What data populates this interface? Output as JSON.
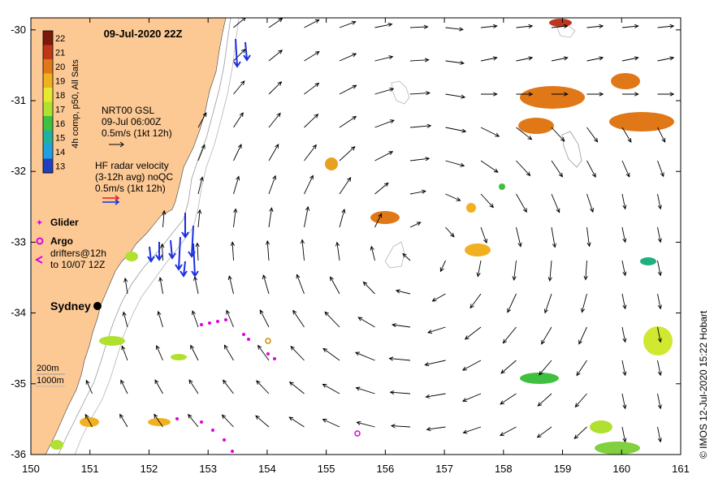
{
  "map": {
    "title": "09-Jul-2020 22Z",
    "credit": "© IMOS 12-Jul-2020 15:22 Hobart",
    "x_ticks": [
      "150",
      "151",
      "152",
      "153",
      "154",
      "155",
      "156",
      "157",
      "158",
      "159",
      "160",
      "161"
    ],
    "y_ticks": [
      "-30",
      "-31",
      "-32",
      "-33",
      "-34",
      "-35",
      "-36"
    ],
    "lon_range": [
      150,
      161
    ],
    "lat_range": [
      -36,
      -29.83
    ]
  },
  "colorbar": {
    "values": [
      "22",
      "21",
      "20",
      "19",
      "18",
      "17",
      "16",
      "15",
      "14",
      "13"
    ],
    "label": "4h comp, p50, All Sats",
    "colors": [
      "#7a1a0a",
      "#c0361a",
      "#e07818",
      "#f0b020",
      "#e8e830",
      "#b0e030",
      "#40c040",
      "#20b0a0",
      "#20a0e0",
      "#2040c0"
    ]
  },
  "legend": {
    "nrt_lines": [
      "NRT00 GSL",
      "09-Jul 06:00Z",
      "0.5m/s (1kt 12h)"
    ],
    "hf_lines": [
      "HF radar velocity",
      "(3-12h avg) noQC",
      "0.5m/s (1kt 12h)"
    ],
    "glider": "Glider",
    "argo": "Argo",
    "drifter_lines": [
      "drifters@12h",
      "to 10/07 12Z"
    ],
    "city": "Sydney",
    "depth_200": "200m",
    "depth_1000": "1000m"
  },
  "colors": {
    "land": "#fcc995",
    "ocean": "#ffffff",
    "glider": "#e000e0",
    "hf_arrow": "#1a2ee0"
  }
}
